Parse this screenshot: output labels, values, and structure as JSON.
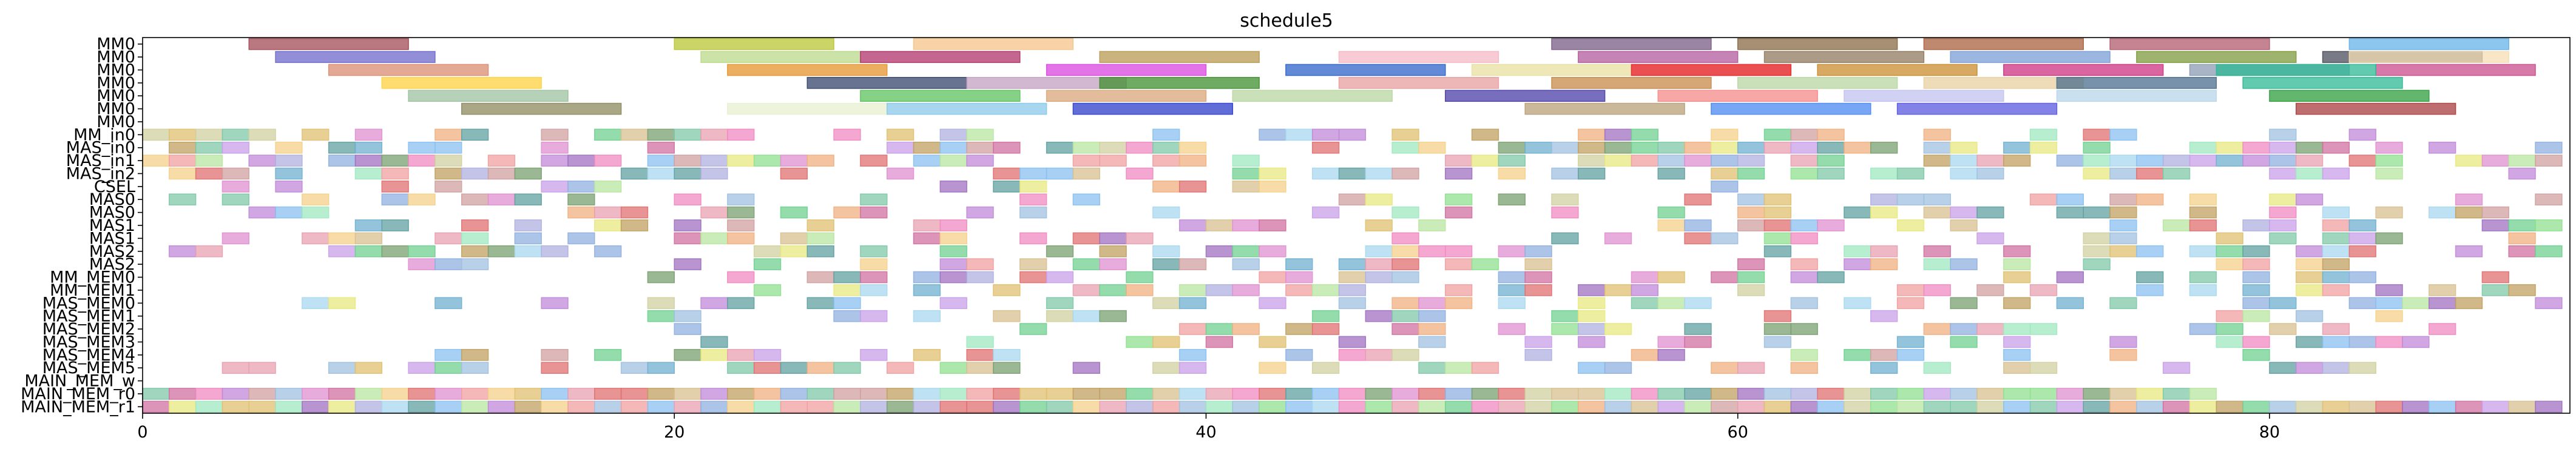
{
  "chart_data": {
    "type": "gantt",
    "title": "schedule5",
    "xlabel": "",
    "ylabel": "",
    "xlim": [
      0,
      91.3
    ],
    "x_ticks": [
      0,
      20,
      40,
      60,
      80
    ],
    "rows": [
      "MM0",
      "MM0",
      "MM0",
      "MM0",
      "MM0",
      "MM0",
      "MM0",
      "MM_in0",
      "MAS_in0",
      "MAS_in1",
      "MAS_in2",
      "CSEL",
      "MAS0",
      "MAS0",
      "MAS1",
      "MAS1",
      "MAS2",
      "MAS2",
      "MM_MEM0",
      "MM_MEM1",
      "MAS_MEM0",
      "MAS_MEM1",
      "MAS_MEM2",
      "MAS_MEM3",
      "MAS_MEM4",
      "MAS_MEM5",
      "MAIN_MEM_w",
      "MAIN_MEM_r0",
      "MAIN_MEM_r1"
    ],
    "tasks": [
      {
        "row": 0,
        "start": 4,
        "end": 10,
        "color": "#A14A55"
      },
      {
        "row": 0,
        "start": 20,
        "end": 26,
        "color": "#B8C634"
      },
      {
        "row": 0,
        "start": 29,
        "end": 35,
        "color": "#F5C48A"
      },
      {
        "row": 0,
        "start": 53,
        "end": 59,
        "color": "#7A5C85"
      },
      {
        "row": 0,
        "start": 60,
        "end": 66,
        "color": "#8A6A45"
      },
      {
        "row": 0,
        "start": 67,
        "end": 73,
        "color": "#A8623F"
      },
      {
        "row": 0,
        "start": 74,
        "end": 80,
        "color": "#B05B6E"
      },
      {
        "row": 0,
        "start": 83,
        "end": 89,
        "color": "#66B3E8"
      },
      {
        "row": 1,
        "start": 5,
        "end": 11,
        "color": "#6D6ACB"
      },
      {
        "row": 1,
        "start": 21,
        "end": 27,
        "color": "#B9D98A"
      },
      {
        "row": 1,
        "start": 27,
        "end": 33,
        "color": "#B0336A"
      },
      {
        "row": 1,
        "start": 36,
        "end": 42,
        "color": "#B89A52"
      },
      {
        "row": 1,
        "start": 45,
        "end": 51,
        "color": "#F5B8C4"
      },
      {
        "row": 1,
        "start": 54,
        "end": 60,
        "color": "#B35A9C"
      },
      {
        "row": 1,
        "start": 61,
        "end": 67,
        "color": "#8F7A5F"
      },
      {
        "row": 1,
        "start": 68,
        "end": 74,
        "color": "#7A9ED6"
      },
      {
        "row": 1,
        "start": 75,
        "end": 81,
        "color": "#7E9A3C"
      },
      {
        "row": 1,
        "start": 82,
        "end": 88,
        "color": "#4B4F5C"
      },
      {
        "row": 1,
        "start": 83,
        "end": 89,
        "color": "#F5DEB3"
      },
      {
        "row": 2,
        "start": 7,
        "end": 13,
        "color": "#D98C70"
      },
      {
        "row": 2,
        "start": 22,
        "end": 28,
        "color": "#E5942E"
      },
      {
        "row": 2,
        "start": 34,
        "end": 40,
        "color": "#D946E0"
      },
      {
        "row": 2,
        "start": 43,
        "end": 49,
        "color": "#2F63C9"
      },
      {
        "row": 2,
        "start": 50,
        "end": 56,
        "color": "#E8E0A0"
      },
      {
        "row": 2,
        "start": 56,
        "end": 62,
        "color": "#F5A2A8"
      },
      {
        "row": 2,
        "start": 56,
        "end": 62,
        "color": "#E62E2E"
      },
      {
        "row": 2,
        "start": 63,
        "end": 69,
        "color": "#C98C2E"
      },
      {
        "row": 2,
        "start": 70,
        "end": 76,
        "color": "#CC3380"
      },
      {
        "row": 2,
        "start": 77,
        "end": 83,
        "color": "#8C9CB3"
      },
      {
        "row": 2,
        "start": 84,
        "end": 90,
        "color": "#C94C8C"
      },
      {
        "row": 2,
        "start": 78,
        "end": 84,
        "color": "#2EB893"
      },
      {
        "row": 3,
        "start": 9,
        "end": 15,
        "color": "#FFD040"
      },
      {
        "row": 3,
        "start": 25,
        "end": 31,
        "color": "#34446B"
      },
      {
        "row": 3,
        "start": 31,
        "end": 37,
        "color": "#C4A0C2"
      },
      {
        "row": 3,
        "start": 36,
        "end": 42,
        "color": "#3F8F2E"
      },
      {
        "row": 3,
        "start": 45,
        "end": 51,
        "color": "#E89F9F"
      },
      {
        "row": 3,
        "start": 53,
        "end": 59,
        "color": "#C78A4A"
      },
      {
        "row": 3,
        "start": 60,
        "end": 66,
        "color": "#B8D6A0"
      },
      {
        "row": 3,
        "start": 67,
        "end": 73,
        "color": "#E8D0A0"
      },
      {
        "row": 3,
        "start": 72,
        "end": 78,
        "color": "#4A6E8C"
      },
      {
        "row": 3,
        "start": 79,
        "end": 85,
        "color": "#2EB893"
      },
      {
        "row": 4,
        "start": 10,
        "end": 16,
        "color": "#9CC2A0"
      },
      {
        "row": 4,
        "start": 27,
        "end": 33,
        "color": "#5CC25C"
      },
      {
        "row": 4,
        "start": 34,
        "end": 40,
        "color": "#D9A67A"
      },
      {
        "row": 4,
        "start": 41,
        "end": 47,
        "color": "#B8D6A0"
      },
      {
        "row": 4,
        "start": 49,
        "end": 55,
        "color": "#4A3EA8"
      },
      {
        "row": 4,
        "start": 57,
        "end": 63,
        "color": "#F58A8A"
      },
      {
        "row": 4,
        "start": 64,
        "end": 70,
        "color": "#C2C2F0"
      },
      {
        "row": 4,
        "start": 72,
        "end": 78,
        "color": "#B8D6E8"
      },
      {
        "row": 4,
        "start": 80,
        "end": 86,
        "color": "#2E9E3C"
      },
      {
        "row": 5,
        "start": 12,
        "end": 18,
        "color": "#8C8A5C"
      },
      {
        "row": 5,
        "start": 22,
        "end": 28,
        "color": "#E8F0D0"
      },
      {
        "row": 5,
        "start": 28,
        "end": 34,
        "color": "#8AC8E8"
      },
      {
        "row": 5,
        "start": 35,
        "end": 41,
        "color": "#2E3EC9"
      },
      {
        "row": 5,
        "start": 52,
        "end": 58,
        "color": "#B8A07A"
      },
      {
        "row": 5,
        "start": 59,
        "end": 65,
        "color": "#4A8AF0"
      },
      {
        "row": 5,
        "start": 66,
        "end": 72,
        "color": "#5A5ADF"
      },
      {
        "row": 5,
        "start": 81,
        "end": 87,
        "color": "#A83E3E"
      }
    ],
    "cell_palette": [
      "#E8A0B0",
      "#A8D8F0",
      "#B8E6A0",
      "#F5D08A",
      "#C9A0E8",
      "#F08AC0",
      "#8AC0F0",
      "#F0B080",
      "#A0E8C0",
      "#D0A0A0",
      "#E8E880",
      "#80C8A8",
      "#C08AD8",
      "#F0A0A0",
      "#90B0E0",
      "#D8C090",
      "#7AA070",
      "#D070A0",
      "#70B0D0",
      "#E0C070",
      "#A070C0",
      "#70D090",
      "#E07070",
      "#B0B0E0",
      "#C0A060",
      "#60A0A0",
      "#E090D0",
      "#90E090",
      "#D0D0A0",
      "#A0C0E0"
    ],
    "fill_rows": [
      {
        "row": 7,
        "seed": 3,
        "density": 0.55,
        "start": 0,
        "end": 84
      },
      {
        "row": 8,
        "seed": 5,
        "density": 0.62,
        "start": 0,
        "end": 91
      },
      {
        "row": 9,
        "seed": 7,
        "density": 0.6,
        "start": 0,
        "end": 91
      },
      {
        "row": 10,
        "seed": 11,
        "density": 0.58,
        "start": 0,
        "end": 91
      },
      {
        "row": 11,
        "seed": 13,
        "density": 0.25,
        "start": 0,
        "end": 60
      },
      {
        "row": 12,
        "seed": 17,
        "density": 0.35,
        "start": 0,
        "end": 91
      },
      {
        "row": 13,
        "seed": 19,
        "density": 0.4,
        "start": 0,
        "end": 91
      },
      {
        "row": 14,
        "seed": 23,
        "density": 0.42,
        "start": 0,
        "end": 91
      },
      {
        "row": 15,
        "seed": 29,
        "density": 0.45,
        "start": 0,
        "end": 91
      },
      {
        "row": 16,
        "seed": 31,
        "density": 0.45,
        "start": 0,
        "end": 91
      },
      {
        "row": 17,
        "seed": 37,
        "density": 0.4,
        "start": 0,
        "end": 91
      },
      {
        "row": 18,
        "seed": 41,
        "density": 0.45,
        "start": 18,
        "end": 91
      },
      {
        "row": 19,
        "seed": 43,
        "density": 0.45,
        "start": 18,
        "end": 91
      },
      {
        "row": 20,
        "seed": 47,
        "density": 0.4,
        "start": 3,
        "end": 91
      },
      {
        "row": 21,
        "seed": 53,
        "density": 0.35,
        "start": 19,
        "end": 88
      },
      {
        "row": 22,
        "seed": 59,
        "density": 0.35,
        "start": 20,
        "end": 88
      },
      {
        "row": 23,
        "seed": 61,
        "density": 0.4,
        "start": 20,
        "end": 86
      },
      {
        "row": 24,
        "seed": 67,
        "density": 0.45,
        "start": 9,
        "end": 86
      },
      {
        "row": 25,
        "seed": 71,
        "density": 0.45,
        "start": 3,
        "end": 86
      },
      {
        "row": 26,
        "seed": 73,
        "density": 0.15,
        "start": 52,
        "end": 58
      },
      {
        "row": 27,
        "seed": 79,
        "density": 1.0,
        "start": 0,
        "end": 78
      },
      {
        "row": 28,
        "seed": 83,
        "density": 1.0,
        "start": 0,
        "end": 91
      }
    ]
  }
}
